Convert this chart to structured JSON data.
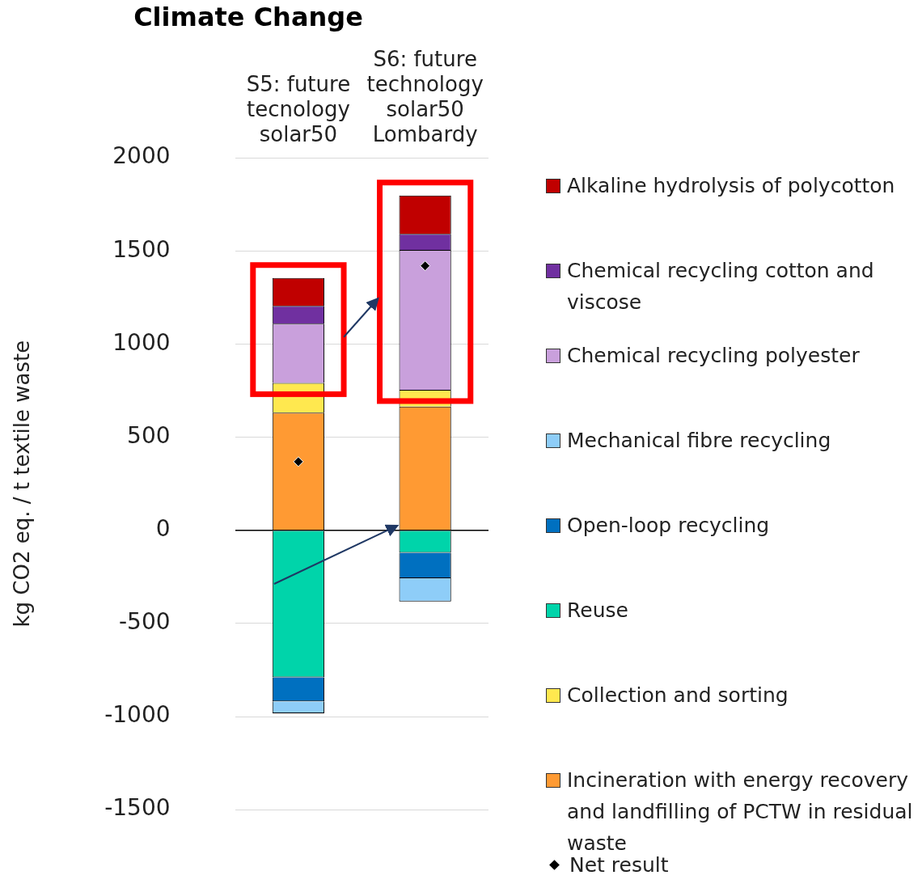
{
  "chart_data": {
    "type": "bar",
    "title": "Climate Change",
    "ylabel": "kg CO2 eq. / t textile waste",
    "categories": [
      "S5: future tecnology solar50",
      "S6: future technology solar50 Lombardy"
    ],
    "stacked": true,
    "ylim": [
      -1500,
      2000
    ],
    "yticks": [
      -1500,
      -1000,
      -500,
      0,
      500,
      1000,
      1500,
      2000
    ],
    "grid": "y",
    "legend": "right",
    "series": [
      {
        "name": "Incineration with energy recovery and landfilling of PCTW in residual waste",
        "color": "#ff9a33",
        "values": [
          632,
          665
        ]
      },
      {
        "name": "Collection and sorting",
        "color": "#ffe84f",
        "values": [
          160,
          90
        ]
      },
      {
        "name": "Reuse",
        "color": "#00d4aa",
        "values": [
          -789,
          -120
        ]
      },
      {
        "name": "Open-loop recycling",
        "color": "#0070c0",
        "values": [
          -129,
          -137
        ]
      },
      {
        "name": "Mechanical fibre recycling",
        "color": "#8ecdf8",
        "values": [
          -64,
          -125
        ]
      },
      {
        "name": "Chemical recycling polyester",
        "color": "#c9a0dc",
        "values": [
          318,
          751
        ]
      },
      {
        "name": "Chemical recycling cotton and viscose",
        "color": "#7030a0",
        "values": [
          95,
          86
        ]
      },
      {
        "name": "Alkaline hydrolysis of polycotton",
        "color": "#c00000",
        "values": [
          150,
          206
        ]
      },
      {
        "name": "Net result",
        "type": "scatter",
        "marker": "diamond",
        "color": "#000000",
        "x": [
          "S5: future tecnology solar50",
          "S6: future technology solar50 Lombardy"
        ],
        "values": [
          369,
          1420
        ]
      }
    ]
  }
}
